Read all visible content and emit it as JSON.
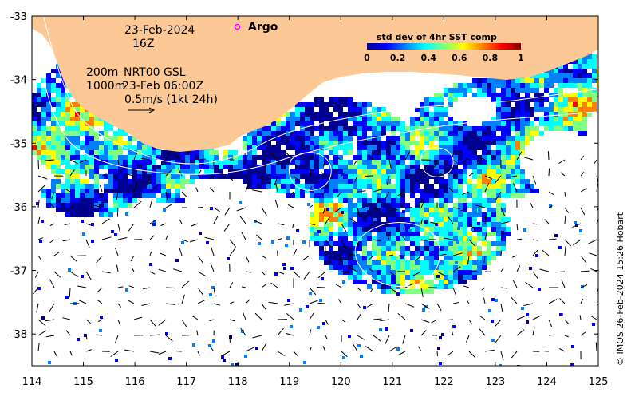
{
  "map": {
    "date_label": "23-Feb-2024",
    "hour_label": "16Z",
    "argo_label": "Argo",
    "contour_label_200": "200m",
    "contour_label_1000": "1000m",
    "product_label": "NRT00 GSL",
    "product_time": "23-Feb 06:00Z",
    "scale_label": "0.5m/s (1kt 24h)",
    "credit": "© IMOS 26-Feb-2024 15:26 Hobart",
    "colors": {
      "land": "#fbc896",
      "ocean_nodata": "#ffffff",
      "argo_marker": "#ff00ff",
      "contour": "#ffffff",
      "vector": "#000000"
    }
  },
  "colorbar": {
    "title": "std dev of 4hr SST comp",
    "ticks": [
      "0",
      "0.2",
      "0.4",
      "0.6",
      "0.8",
      "1"
    ],
    "colormap": [
      "#00008f",
      "#0000ff",
      "#0080ff",
      "#00ffff",
      "#80ff80",
      "#ffff00",
      "#ff8000",
      "#ff0000",
      "#800000"
    ]
  },
  "chart_data": {
    "type": "heatmap",
    "title": "std dev of 4hr SST comp",
    "xlim": [
      114,
      125
    ],
    "ylim": [
      -38.5,
      -33
    ],
    "x_ticks": [
      "114",
      "115",
      "116",
      "117",
      "118",
      "119",
      "120",
      "121",
      "122",
      "123",
      "124",
      "125"
    ],
    "y_ticks": [
      "-33",
      "-34",
      "-35",
      "-36",
      "-37",
      "-38"
    ],
    "colorbar_range": [
      0,
      1
    ],
    "argo_floats": [
      {
        "lon": 117.95,
        "lat": -33.2
      }
    ]
  }
}
